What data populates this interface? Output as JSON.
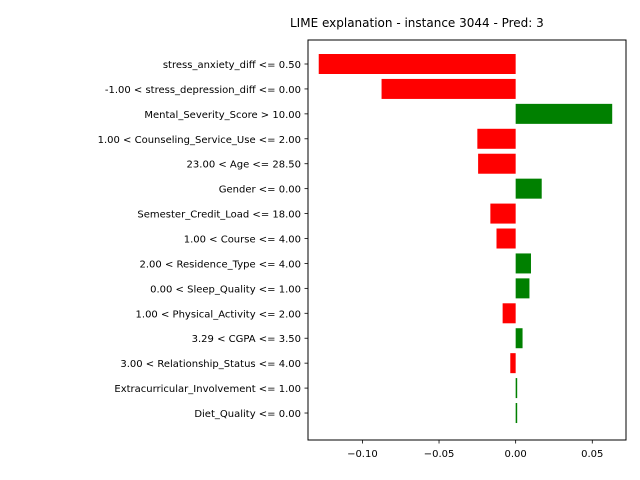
{
  "chart_data": {
    "type": "bar",
    "orientation": "horizontal",
    "title": "LIME explanation - instance 3044 - Pred: 3",
    "xlabel": "",
    "ylabel": "",
    "xlim": [
      -0.1355,
      0.072
    ],
    "xticks": [
      -0.1,
      -0.05,
      0.0,
      0.05
    ],
    "xtick_labels": [
      "−0.10",
      "−0.05",
      "0.00",
      "0.05"
    ],
    "grid": false,
    "categories": [
      "stress_anxiety_diff <= 0.50",
      "-1.00 < stress_depression_diff <= 0.00",
      "Mental_Severity_Score > 10.00",
      "1.00 < Counseling_Service_Use <= 2.00",
      "23.00 < Age <= 28.50",
      "Gender <= 0.00",
      "Semester_Credit_Load <= 18.00",
      "1.00 < Course <= 4.00",
      "2.00 < Residence_Type <= 4.00",
      "0.00 < Sleep_Quality <= 1.00",
      "1.00 < Physical_Activity <= 2.00",
      "3.29 < CGPA <= 3.50",
      "3.00 < Relationship_Status <= 4.00",
      "Extracurricular_Involvement <= 1.00",
      "Diet_Quality <= 0.00"
    ],
    "values": [
      -0.1285,
      -0.0875,
      0.063,
      -0.025,
      -0.0245,
      0.017,
      -0.0165,
      -0.0125,
      0.01,
      0.009,
      -0.0085,
      0.0045,
      -0.0035,
      0.001,
      0.001
    ],
    "colors": {
      "positive": "#008000",
      "negative": "#ff0000"
    }
  }
}
